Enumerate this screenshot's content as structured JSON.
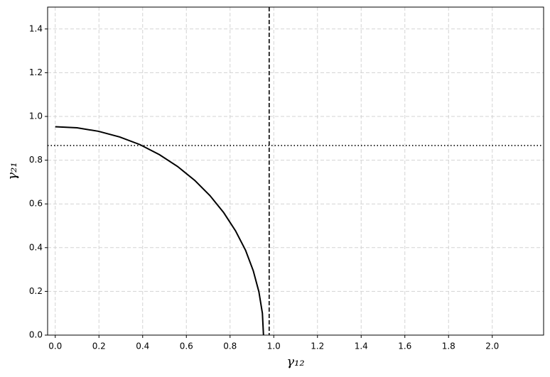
{
  "chart_data": {
    "type": "line",
    "xlabel": "γ₁₂",
    "ylabel": "γ₂₁",
    "series": [
      {
        "color": "#000000",
        "x": [
          0,
          0.1,
          0.198,
          0.295,
          0.388,
          0.477,
          0.56,
          0.638,
          0.708,
          0.771,
          0.825,
          0.871,
          0.906,
          0.932,
          0.948,
          0.953
        ],
        "values": [
          0.953,
          0.948,
          0.932,
          0.906,
          0.871,
          0.825,
          0.771,
          0.708,
          0.638,
          0.56,
          0.477,
          0.388,
          0.295,
          0.198,
          0.1,
          0
        ]
      }
    ],
    "reference_lines": [
      {
        "axis": "x",
        "value": 0.979,
        "style": "dashed"
      },
      {
        "axis": "y",
        "value": 0.867,
        "style": "dotted"
      }
    ],
    "xlim": [
      -0.035,
      2.235
    ],
    "ylim": [
      0,
      1.5
    ],
    "xticks": [
      {
        "value": 0,
        "label": "0.0"
      },
      0.2,
      0.4,
      0.6,
      0.8,
      {
        "value": 1,
        "label": "1.0"
      },
      1.2,
      1.4,
      1.6,
      1.8,
      {
        "value": 2,
        "label": "2.0"
      }
    ],
    "yticks": [
      {
        "value": 0,
        "label": "0.0"
      },
      0.2,
      0.4,
      0.6,
      0.8,
      {
        "value": 1,
        "label": "1.0"
      },
      1.2,
      1.4
    ],
    "grid": true
  }
}
